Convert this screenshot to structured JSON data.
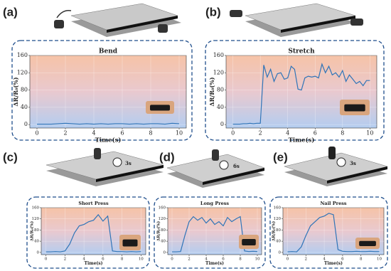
{
  "chart_data": [
    {
      "type": "line",
      "panel_label": "(a)",
      "title": "Bend",
      "x_label": "Time(s)",
      "y_label": "ΔR/R₀(%)",
      "x": [
        0,
        0.5,
        1,
        1.5,
        2,
        2.5,
        3,
        3.5,
        4,
        4.5,
        5,
        5.5,
        6,
        6.5,
        7,
        7.5,
        8,
        8.5,
        9,
        9.5,
        10
      ],
      "values": [
        1,
        1,
        1,
        2,
        3,
        2,
        1,
        2,
        1,
        2,
        1,
        2,
        2,
        1,
        2,
        1,
        2,
        2,
        1,
        3,
        2
      ],
      "color": "#2f74b8",
      "xlim": [
        -0.5,
        10.5
      ],
      "ylim": [
        -8,
        160
      ],
      "xticks": [
        0,
        2,
        4,
        6,
        8,
        10
      ],
      "yticks": [
        0,
        40,
        80,
        120,
        160
      ],
      "grid": true
    },
    {
      "type": "line",
      "panel_label": "(b)",
      "title": "Stretch",
      "x_label": "Time(s)",
      "y_label": "ΔR/R₀(%)",
      "x": [
        0,
        0.25,
        0.5,
        0.75,
        1,
        1.25,
        1.5,
        1.75,
        2,
        2.25,
        2.5,
        2.75,
        3,
        3.25,
        3.5,
        3.75,
        4,
        4.25,
        4.5,
        4.75,
        5,
        5.25,
        5.5,
        5.75,
        6,
        6.25,
        6.5,
        6.75,
        7,
        7.25,
        7.5,
        7.75,
        8,
        8.25,
        8.5,
        8.75,
        9,
        9.25,
        9.5,
        9.75,
        10
      ],
      "values": [
        1,
        1,
        1,
        2,
        2,
        3,
        2,
        3,
        3,
        138,
        110,
        128,
        100,
        118,
        120,
        105,
        108,
        135,
        128,
        82,
        80,
        108,
        112,
        110,
        112,
        108,
        140,
        120,
        135,
        115,
        120,
        110,
        125,
        100,
        115,
        105,
        95,
        100,
        90,
        102,
        102
      ],
      "color": "#2f74b8",
      "xlim": [
        -0.5,
        10.5
      ],
      "ylim": [
        -8,
        160
      ],
      "xticks": [
        0,
        2,
        4,
        6,
        8,
        10
      ],
      "yticks": [
        0,
        40,
        80,
        120,
        160
      ],
      "grid": true
    },
    {
      "type": "line",
      "panel_label": "(c)",
      "title": "Short Press",
      "x_label": "Time(s)",
      "y_label": "ΔR/R₀(%)",
      "timer_label": "3s",
      "x": [
        0,
        0.5,
        1,
        1.5,
        2,
        2.5,
        3,
        3.5,
        4,
        4.5,
        5,
        5.5,
        6,
        6.5,
        7,
        7.5,
        8,
        8.5,
        9,
        9.5,
        10
      ],
      "values": [
        2,
        2,
        3,
        2,
        5,
        30,
        70,
        95,
        100,
        110,
        115,
        135,
        112,
        130,
        5,
        3,
        3,
        2,
        3,
        2,
        3
      ],
      "color": "#2f74b8",
      "xlim": [
        -0.5,
        10.5
      ],
      "ylim": [
        -8,
        160
      ],
      "xticks": [
        0,
        2,
        4,
        6,
        8,
        10
      ],
      "yticks": [
        0,
        40,
        80,
        120,
        160
      ],
      "grid": true
    },
    {
      "type": "line",
      "panel_label": "(d)",
      "title": "Long Press",
      "x_label": "Time(s)",
      "y_label": "ΔR/R₀(%)",
      "timer_label": "6s",
      "x": [
        0,
        0.5,
        1,
        1.5,
        2,
        2.5,
        3,
        3.5,
        4,
        4.5,
        5,
        5.5,
        6,
        6.5,
        7,
        7.5,
        8,
        8.5,
        9,
        9.5,
        10
      ],
      "values": [
        2,
        2,
        3,
        60,
        110,
        128,
        115,
        125,
        105,
        120,
        100,
        110,
        95,
        125,
        110,
        120,
        128,
        5,
        3,
        4,
        3
      ],
      "color": "#2f74b8",
      "xlim": [
        -0.5,
        10.5
      ],
      "ylim": [
        -8,
        160
      ],
      "xticks": [
        0,
        2,
        4,
        6,
        8,
        10
      ],
      "yticks": [
        0,
        40,
        80,
        120,
        160
      ],
      "grid": true
    },
    {
      "type": "line",
      "panel_label": "(e)",
      "title": "Nail Press",
      "x_label": "Time(s)",
      "y_label": "ΔR/R₀(%)",
      "timer_label": "3s",
      "x": [
        0,
        0.5,
        1,
        1.5,
        2,
        2.5,
        3,
        3.5,
        4,
        4.5,
        5,
        5.5,
        6,
        6.5,
        7,
        7.5,
        8,
        8.5,
        9,
        9.5,
        10
      ],
      "values": [
        2,
        3,
        2,
        20,
        60,
        95,
        110,
        125,
        130,
        140,
        135,
        10,
        4,
        3,
        3,
        4,
        3,
        3,
        4,
        3,
        3
      ],
      "color": "#2f74b8",
      "xlim": [
        -0.5,
        10.5
      ],
      "ylim": [
        -8,
        160
      ],
      "xticks": [
        0,
        2,
        4,
        6,
        8,
        10
      ],
      "yticks": [
        0,
        40,
        80,
        120,
        160
      ],
      "grid": true
    }
  ]
}
